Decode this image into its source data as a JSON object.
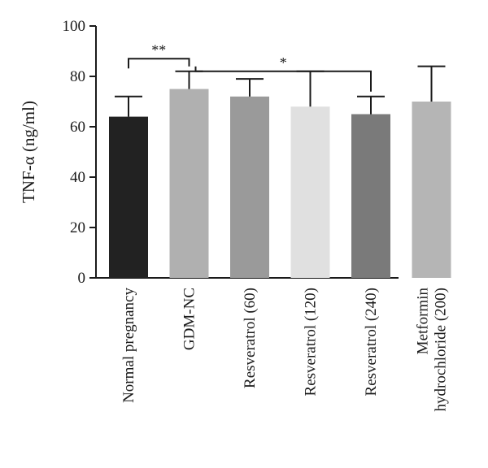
{
  "chart_data": {
    "type": "bar",
    "ylabel": "TNF-α (ng/ml)",
    "ylim": [
      0,
      100
    ],
    "yticks": [
      0,
      20,
      40,
      60,
      80,
      100
    ],
    "categories": [
      [
        "Normal pregnancy"
      ],
      [
        "GDM-NC"
      ],
      [
        "Resveratrol (60)"
      ],
      [
        "Resveratrol (120)"
      ],
      [
        "Resveratrol (240)"
      ],
      [
        "Metformin",
        "hydrochloride (200)"
      ]
    ],
    "values": [
      64,
      75,
      72,
      68,
      65,
      70
    ],
    "error_upper": [
      72,
      82,
      79,
      82,
      72,
      84
    ],
    "colors": [
      "#222222",
      "#b0b0b0",
      "#9a9a9a",
      "#e0e0e0",
      "#7a7a7a",
      "#b5b5b5"
    ],
    "significance": [
      {
        "from": 0,
        "to": 1,
        "label": "**",
        "y": 87
      },
      {
        "from": 1,
        "to": 4,
        "label": "*",
        "y": 82
      }
    ]
  }
}
